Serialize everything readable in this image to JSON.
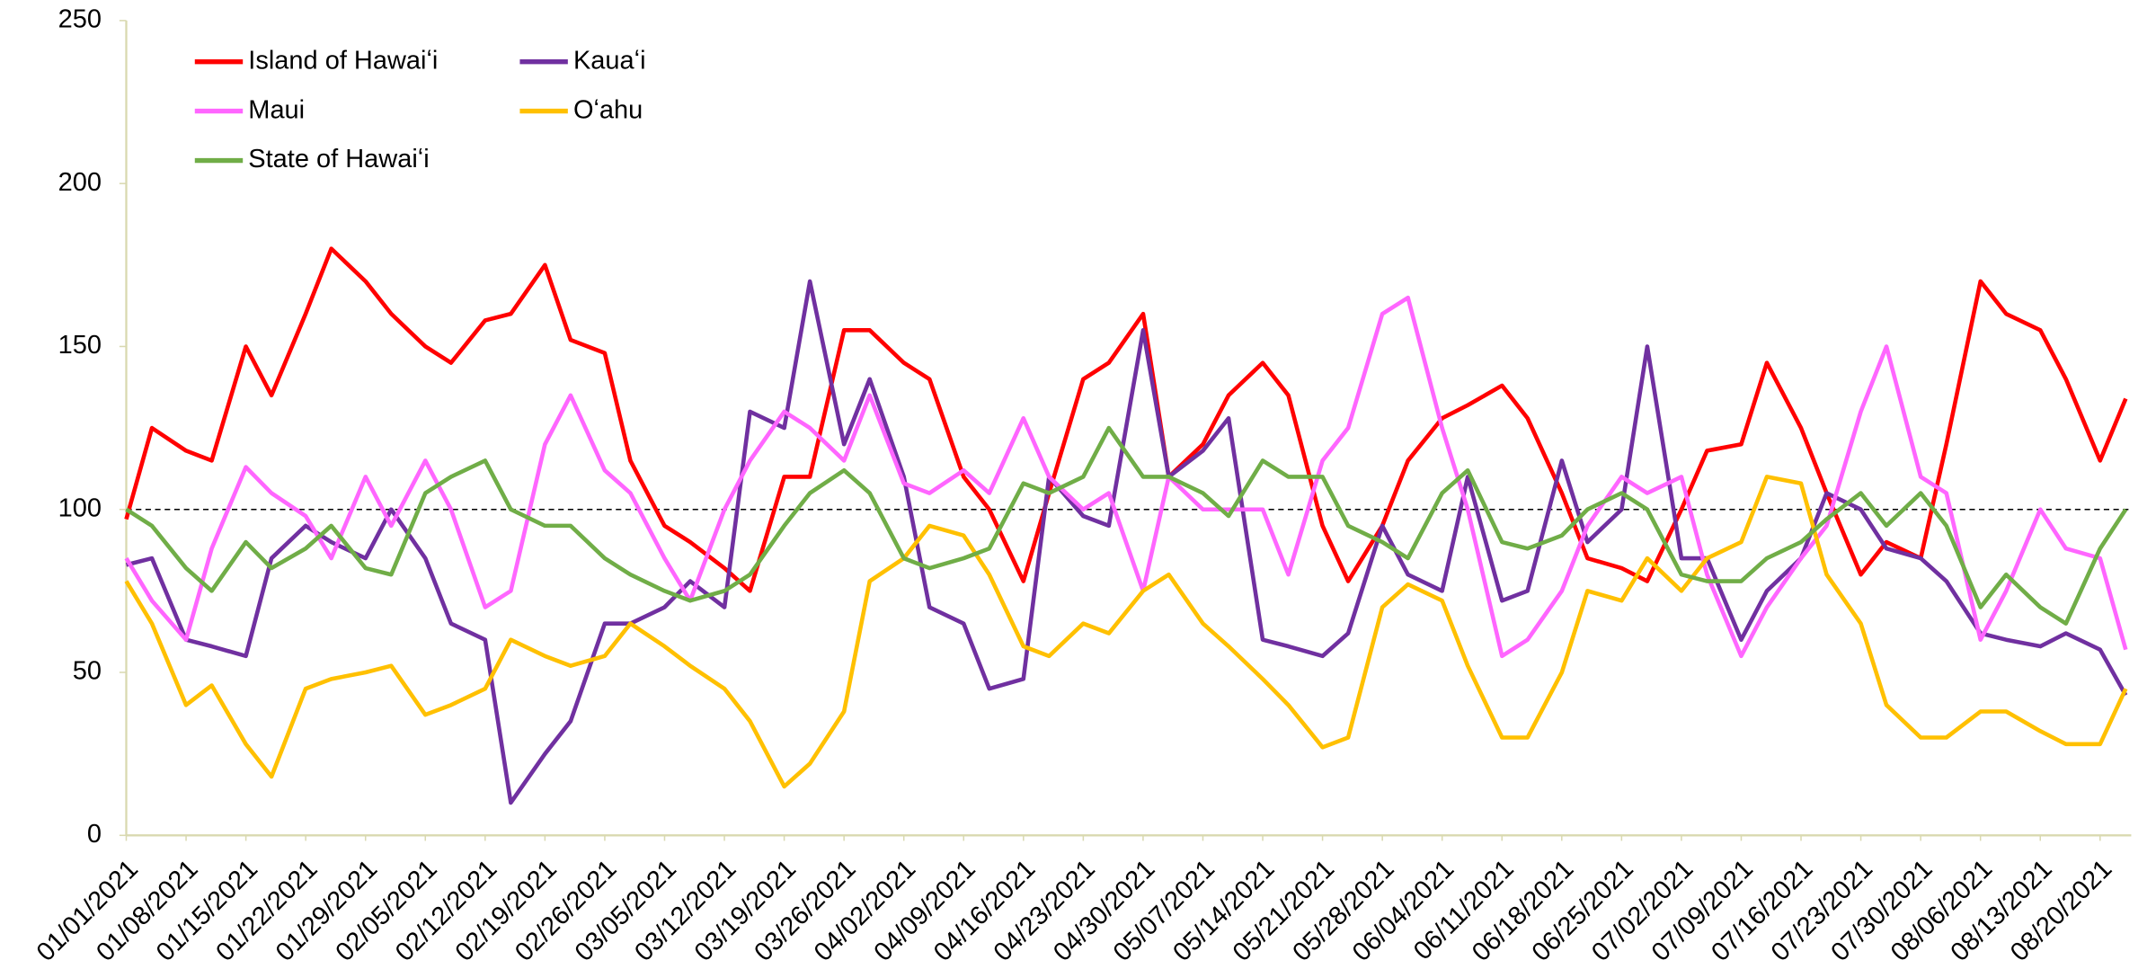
{
  "chart_data": {
    "type": "line",
    "x": [
      "01/01/2021",
      "01/04/2021",
      "01/08/2021",
      "01/11/2021",
      "01/15/2021",
      "01/18/2021",
      "01/22/2021",
      "01/25/2021",
      "01/29/2021",
      "02/01/2021",
      "02/05/2021",
      "02/08/2021",
      "02/12/2021",
      "02/15/2021",
      "02/19/2021",
      "02/22/2021",
      "02/26/2021",
      "03/01/2021",
      "03/05/2021",
      "03/08/2021",
      "03/12/2021",
      "03/15/2021",
      "03/19/2021",
      "03/22/2021",
      "03/26/2021",
      "03/29/2021",
      "04/02/2021",
      "04/05/2021",
      "04/09/2021",
      "04/12/2021",
      "04/16/2021",
      "04/19/2021",
      "04/23/2021",
      "04/26/2021",
      "04/30/2021",
      "05/03/2021",
      "05/07/2021",
      "05/10/2021",
      "05/14/2021",
      "05/17/2021",
      "05/21/2021",
      "05/24/2021",
      "05/28/2021",
      "05/31/2021",
      "06/04/2021",
      "06/07/2021",
      "06/11/2021",
      "06/14/2021",
      "06/18/2021",
      "06/21/2021",
      "06/25/2021",
      "06/28/2021",
      "07/02/2021",
      "07/05/2021",
      "07/09/2021",
      "07/12/2021",
      "07/16/2021",
      "07/19/2021",
      "07/23/2021",
      "07/26/2021",
      "07/30/2021",
      "08/02/2021",
      "08/06/2021",
      "08/09/2021",
      "08/13/2021",
      "08/16/2021",
      "08/20/2021",
      "08/23/2021"
    ],
    "xlim": [
      "01/01/2021",
      "08/23/2021"
    ],
    "xticks": [
      "01/01/2021",
      "01/08/2021",
      "01/15/2021",
      "01/22/2021",
      "01/29/2021",
      "02/05/2021",
      "02/12/2021",
      "02/19/2021",
      "02/26/2021",
      "03/05/2021",
      "03/12/2021",
      "03/19/2021",
      "03/26/2021",
      "04/02/2021",
      "04/09/2021",
      "04/16/2021",
      "04/23/2021",
      "04/30/2021",
      "05/07/2021",
      "05/14/2021",
      "05/21/2021",
      "05/28/2021",
      "06/04/2021",
      "06/11/2021",
      "06/18/2021",
      "06/25/2021",
      "07/02/2021",
      "07/09/2021",
      "07/16/2021",
      "07/23/2021",
      "07/30/2021",
      "08/06/2021",
      "08/13/2021",
      "08/20/2021"
    ],
    "ylim": [
      0,
      250
    ],
    "yticks": [
      0,
      50,
      100,
      150,
      200,
      250
    ],
    "reference_line": 100,
    "legend": "top-left",
    "series": [
      {
        "name": "Island of Hawaiʻi",
        "color": "#ff0000",
        "values": [
          97,
          125,
          118,
          115,
          150,
          135,
          160,
          180,
          170,
          160,
          150,
          145,
          158,
          160,
          175,
          152,
          148,
          115,
          95,
          90,
          82,
          75,
          110,
          110,
          155,
          155,
          145,
          140,
          110,
          100,
          78,
          105,
          140,
          145,
          160,
          110,
          120,
          135,
          145,
          135,
          95,
          78,
          95,
          115,
          128,
          132,
          138,
          128,
          105,
          85,
          82,
          78,
          100,
          118,
          120,
          145,
          125,
          105,
          80,
          90,
          85,
          120,
          170,
          160,
          155,
          140,
          115,
          134
        ]
      },
      {
        "name": "Kauaʻi",
        "color": "#7030a0",
        "values": [
          83,
          85,
          60,
          58,
          55,
          85,
          95,
          90,
          85,
          100,
          85,
          65,
          60,
          10,
          25,
          35,
          65,
          65,
          70,
          78,
          70,
          130,
          125,
          170,
          120,
          140,
          110,
          70,
          65,
          45,
          48,
          110,
          98,
          95,
          155,
          110,
          118,
          128,
          60,
          58,
          55,
          62,
          95,
          80,
          75,
          110,
          72,
          75,
          115,
          90,
          100,
          150,
          85,
          85,
          60,
          75,
          85,
          105,
          100,
          88,
          85,
          78,
          62,
          60,
          58,
          62,
          57,
          43
        ]
      },
      {
        "name": "Maui",
        "color": "#ff66ff",
        "values": [
          85,
          72,
          60,
          88,
          113,
          105,
          98,
          85,
          110,
          95,
          115,
          100,
          70,
          75,
          120,
          135,
          112,
          105,
          85,
          72,
          100,
          115,
          130,
          125,
          115,
          135,
          108,
          105,
          112,
          105,
          128,
          110,
          100,
          105,
          75,
          110,
          100,
          100,
          100,
          80,
          115,
          125,
          160,
          165,
          125,
          100,
          55,
          60,
          75,
          95,
          110,
          105,
          110,
          80,
          55,
          70,
          85,
          95,
          130,
          150,
          110,
          105,
          60,
          75,
          100,
          88,
          85,
          57
        ]
      },
      {
        "name": "Oʻahu",
        "color": "#ffc000",
        "values": [
          78,
          65,
          40,
          46,
          28,
          18,
          45,
          48,
          50,
          52,
          37,
          40,
          45,
          60,
          55,
          52,
          55,
          65,
          58,
          52,
          45,
          35,
          15,
          22,
          38,
          78,
          85,
          95,
          92,
          80,
          58,
          55,
          65,
          62,
          75,
          80,
          65,
          58,
          48,
          40,
          27,
          30,
          70,
          77,
          72,
          52,
          30,
          30,
          50,
          75,
          72,
          85,
          75,
          85,
          90,
          110,
          108,
          80,
          65,
          40,
          30,
          30,
          38,
          38,
          32,
          28,
          28,
          45
        ]
      },
      {
        "name": "State of Hawaiʻi",
        "color": "#70ad47",
        "values": [
          100,
          95,
          82,
          75,
          90,
          82,
          88,
          95,
          82,
          80,
          105,
          110,
          115,
          100,
          95,
          95,
          85,
          80,
          75,
          72,
          75,
          80,
          95,
          105,
          112,
          105,
          85,
          82,
          85,
          88,
          108,
          105,
          110,
          125,
          110,
          110,
          105,
          98,
          115,
          110,
          110,
          95,
          90,
          85,
          105,
          112,
          90,
          88,
          92,
          100,
          105,
          100,
          80,
          78,
          78,
          85,
          90,
          97,
          105,
          95,
          105,
          95,
          70,
          80,
          70,
          65,
          88,
          100
        ]
      }
    ]
  }
}
